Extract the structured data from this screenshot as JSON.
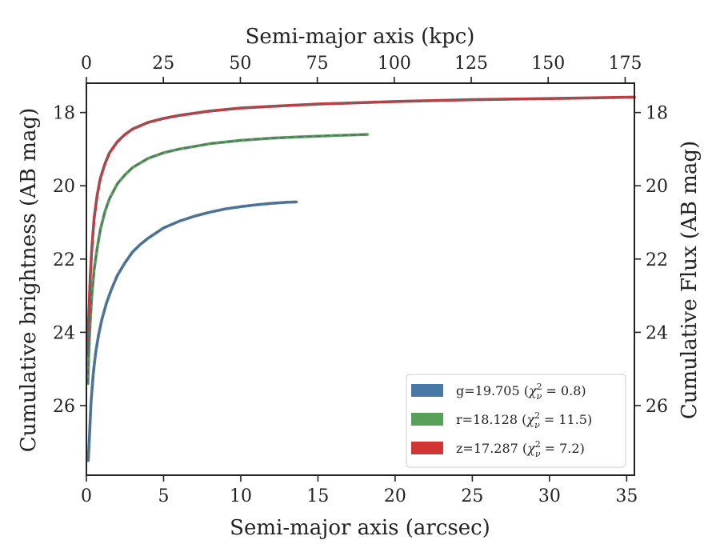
{
  "chart_data": {
    "type": "line",
    "title": "",
    "xlabel": "Semi-major axis (arcsec)",
    "ylabel": "Cumulative brightness (AB mag)",
    "x2label": "Semi-major axis (kpc)",
    "y2label": "Cumulative Flux (AB mag)",
    "xlim": [
      0,
      35.5
    ],
    "ylim": [
      27.9,
      17.2
    ],
    "x2lim": [
      0,
      178
    ],
    "y_inverted": true,
    "xticks": [
      0,
      5,
      10,
      15,
      20,
      25,
      30,
      35
    ],
    "yticks": [
      18,
      20,
      22,
      24,
      26
    ],
    "x2ticks": [
      0,
      25,
      50,
      75,
      100,
      125,
      150,
      175
    ],
    "legend_position": "lower-right",
    "grid": false,
    "fit_line_style": "dashed",
    "fit_line_color": "#5a6b73",
    "series": [
      {
        "name": "g",
        "legend": "g=19.705 (χ²ν = 0.8)",
        "label_main": "g=19.705 (",
        "label_chi": "χ",
        "label_sup": "2",
        "label_sub": "ν",
        "label_val": " = 0.8)",
        "color": "#4878a8",
        "x": [
          0.12,
          0.2,
          0.3,
          0.45,
          0.6,
          0.8,
          1.0,
          1.3,
          1.6,
          2.0,
          2.5,
          3.0,
          3.5,
          4.0,
          5.0,
          6.0,
          7.0,
          8.0,
          9.0,
          10.0,
          11.0,
          12.0,
          13.0,
          13.6
        ],
        "values": [
          27.5,
          26.8,
          25.9,
          25.1,
          24.55,
          24.05,
          23.65,
          23.2,
          22.85,
          22.45,
          22.1,
          21.8,
          21.6,
          21.43,
          21.15,
          20.97,
          20.83,
          20.72,
          20.63,
          20.57,
          20.52,
          20.48,
          20.45,
          20.44
        ]
      },
      {
        "name": "r",
        "legend": "r=18.128 (χ²ν = 11.5)",
        "label_main": "r=18.128 (",
        "label_chi": "χ",
        "label_sup": "2",
        "label_sub": "ν",
        "label_val": " = 11.5)",
        "color": "#58a058",
        "x": [
          0.1,
          0.15,
          0.25,
          0.35,
          0.5,
          0.7,
          0.9,
          1.2,
          1.5,
          2.0,
          2.5,
          3.0,
          4.0,
          5.0,
          6.0,
          8.0,
          10.0,
          12.0,
          14.0,
          16.0,
          18.2
        ],
        "values": [
          25.4,
          24.6,
          23.7,
          23.0,
          22.3,
          21.7,
          21.2,
          20.7,
          20.35,
          19.95,
          19.7,
          19.5,
          19.25,
          19.1,
          19.0,
          18.85,
          18.76,
          18.7,
          18.66,
          18.63,
          18.6
        ]
      },
      {
        "name": "z",
        "legend": "z=17.287 (χ²ν = 7.2)",
        "label_main": "z=17.287 (",
        "label_chi": "χ",
        "label_sup": "2",
        "label_sub": "ν",
        "label_val": " = 7.2)",
        "color": "#d03535",
        "x": [
          0.1,
          0.15,
          0.25,
          0.35,
          0.5,
          0.7,
          0.9,
          1.2,
          1.5,
          2.0,
          2.5,
          3.0,
          4.0,
          5.0,
          6.0,
          8.0,
          10.0,
          12.0,
          15.0,
          20.0,
          25.0,
          30.0,
          35.5
        ],
        "values": [
          24.6,
          23.6,
          22.5,
          21.7,
          20.9,
          20.25,
          19.8,
          19.4,
          19.1,
          18.8,
          18.6,
          18.45,
          18.27,
          18.16,
          18.08,
          17.96,
          17.88,
          17.83,
          17.77,
          17.7,
          17.65,
          17.62,
          17.58
        ]
      }
    ]
  }
}
